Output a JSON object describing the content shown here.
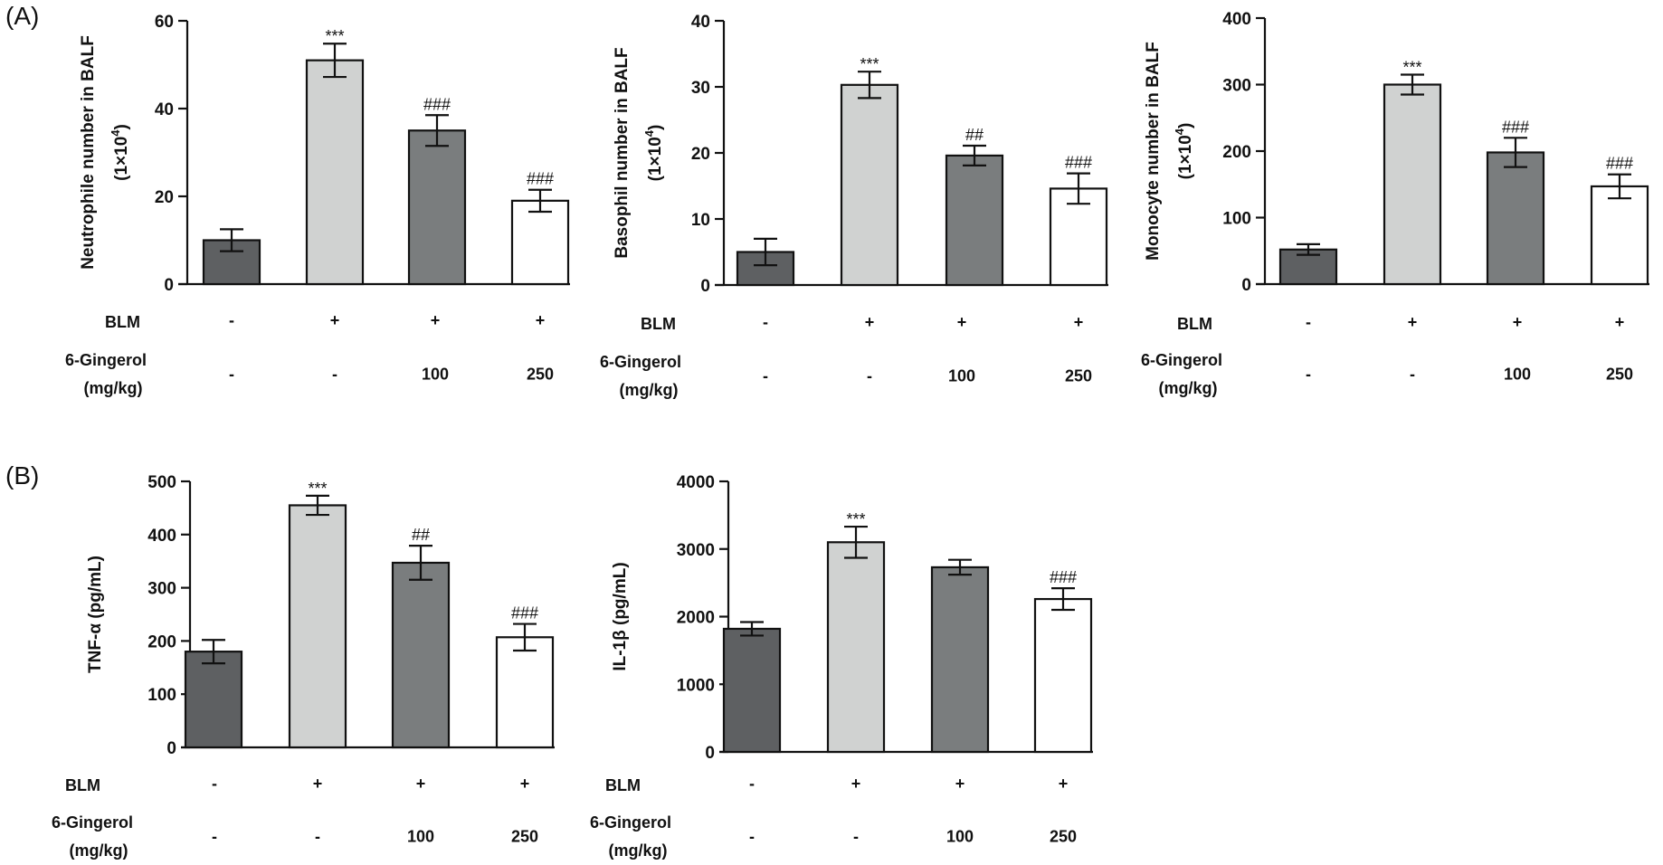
{
  "panels": [
    {
      "label": "(A)"
    },
    {
      "label": "(B)"
    }
  ],
  "chart_data": [
    {
      "type": "bar",
      "panel": "(A)",
      "ylabel_line1": "Neutrophile number in BALF",
      "ylabel_line2": "(1×10",
      "ylabel_sup": "4",
      "ylabel_end": ")",
      "ylim": [
        0,
        60
      ],
      "yticks": [
        "0",
        "20",
        "40",
        "60"
      ],
      "values": [
        10,
        51,
        35,
        19
      ],
      "errors": [
        2.5,
        3.8,
        3.5,
        2.5
      ],
      "significance": [
        "",
        "***",
        "###",
        "###"
      ],
      "bar_colors": [
        "#5e6062",
        "#d0d2d1",
        "#7a7d7e",
        "#ffffff"
      ],
      "conditions": [
        {
          "label": "BLM",
          "values": [
            "-",
            "+",
            "+",
            "+"
          ]
        },
        {
          "label_line1": "6-Gingerol",
          "label_line2": "(mg/kg)",
          "values": [
            "-",
            "-",
            "100",
            "250"
          ]
        }
      ]
    },
    {
      "type": "bar",
      "panel": "(A)",
      "ylabel_line1": "Basophil number in BALF",
      "ylabel_line2": "(1×10",
      "ylabel_sup": "4",
      "ylabel_end": ")",
      "ylim": [
        0,
        40
      ],
      "yticks": [
        "0",
        "10",
        "20",
        "30",
        "40"
      ],
      "values": [
        5,
        30.3,
        19.6,
        14.6
      ],
      "errors": [
        2,
        2,
        1.5,
        2.3
      ],
      "significance": [
        "",
        "***",
        "##",
        "###"
      ],
      "bar_colors": [
        "#5e6062",
        "#d0d2d1",
        "#7a7d7e",
        "#ffffff"
      ],
      "conditions": [
        {
          "label": "BLM",
          "values": [
            "-",
            "+",
            "+",
            "+"
          ]
        },
        {
          "label_line1": "6-Gingerol",
          "label_line2": "(mg/kg)",
          "values": [
            "-",
            "-",
            "100",
            "250"
          ]
        }
      ]
    },
    {
      "type": "bar",
      "panel": "(A)",
      "ylabel_line1": "Monocyte number in BALF",
      "ylabel_line2": "(1×10",
      "ylabel_sup": "4",
      "ylabel_end": ")",
      "ylim": [
        0,
        400
      ],
      "yticks": [
        "0",
        "100",
        "200",
        "300",
        "400"
      ],
      "values": [
        52,
        300,
        198,
        147
      ],
      "errors": [
        8,
        15,
        22,
        18
      ],
      "significance": [
        "",
        "***",
        "###",
        "###"
      ],
      "bar_colors": [
        "#5e6062",
        "#d0d2d1",
        "#7a7d7e",
        "#ffffff"
      ],
      "conditions": [
        {
          "label": "BLM",
          "values": [
            "-",
            "+",
            "+",
            "+"
          ]
        },
        {
          "label_line1": "6-Gingerol",
          "label_line2": "(mg/kg)",
          "values": [
            "-",
            "-",
            "100",
            "250"
          ]
        }
      ]
    },
    {
      "type": "bar",
      "panel": "(B)",
      "ylabel_line1": "TNF-α (pg/mL)",
      "ylim": [
        0,
        500
      ],
      "yticks": [
        "0",
        "100",
        "200",
        "300",
        "400",
        "500"
      ],
      "values": [
        180,
        455,
        347,
        207
      ],
      "errors": [
        22,
        18,
        32,
        25
      ],
      "significance": [
        "",
        "***",
        "##",
        "###"
      ],
      "bar_colors": [
        "#5e6062",
        "#d0d2d1",
        "#7a7d7e",
        "#ffffff"
      ],
      "conditions": [
        {
          "label": "BLM",
          "values": [
            "-",
            "+",
            "+",
            "+"
          ]
        },
        {
          "label_line1": "6-Gingerol",
          "label_line2": "(mg/kg)",
          "values": [
            "-",
            "-",
            "100",
            "250"
          ]
        }
      ]
    },
    {
      "type": "bar",
      "panel": "(B)",
      "ylabel_line1": "IL-1β (pg/mL)",
      "ylim": [
        0,
        4000
      ],
      "yticks": [
        "0",
        "1000",
        "2000",
        "3000",
        "4000"
      ],
      "values": [
        1820,
        3100,
        2730,
        2260
      ],
      "errors": [
        100,
        230,
        110,
        160
      ],
      "significance": [
        "",
        "***",
        "",
        "###"
      ],
      "bar_colors": [
        "#5e6062",
        "#d0d2d1",
        "#7a7d7e",
        "#ffffff"
      ],
      "conditions": [
        {
          "label": "BLM",
          "values": [
            "-",
            "+",
            "+",
            "+"
          ]
        },
        {
          "label_line1": "6-Gingerol",
          "label_line2": "(mg/kg)",
          "values": [
            "-",
            "-",
            "100",
            "250"
          ]
        }
      ]
    }
  ]
}
